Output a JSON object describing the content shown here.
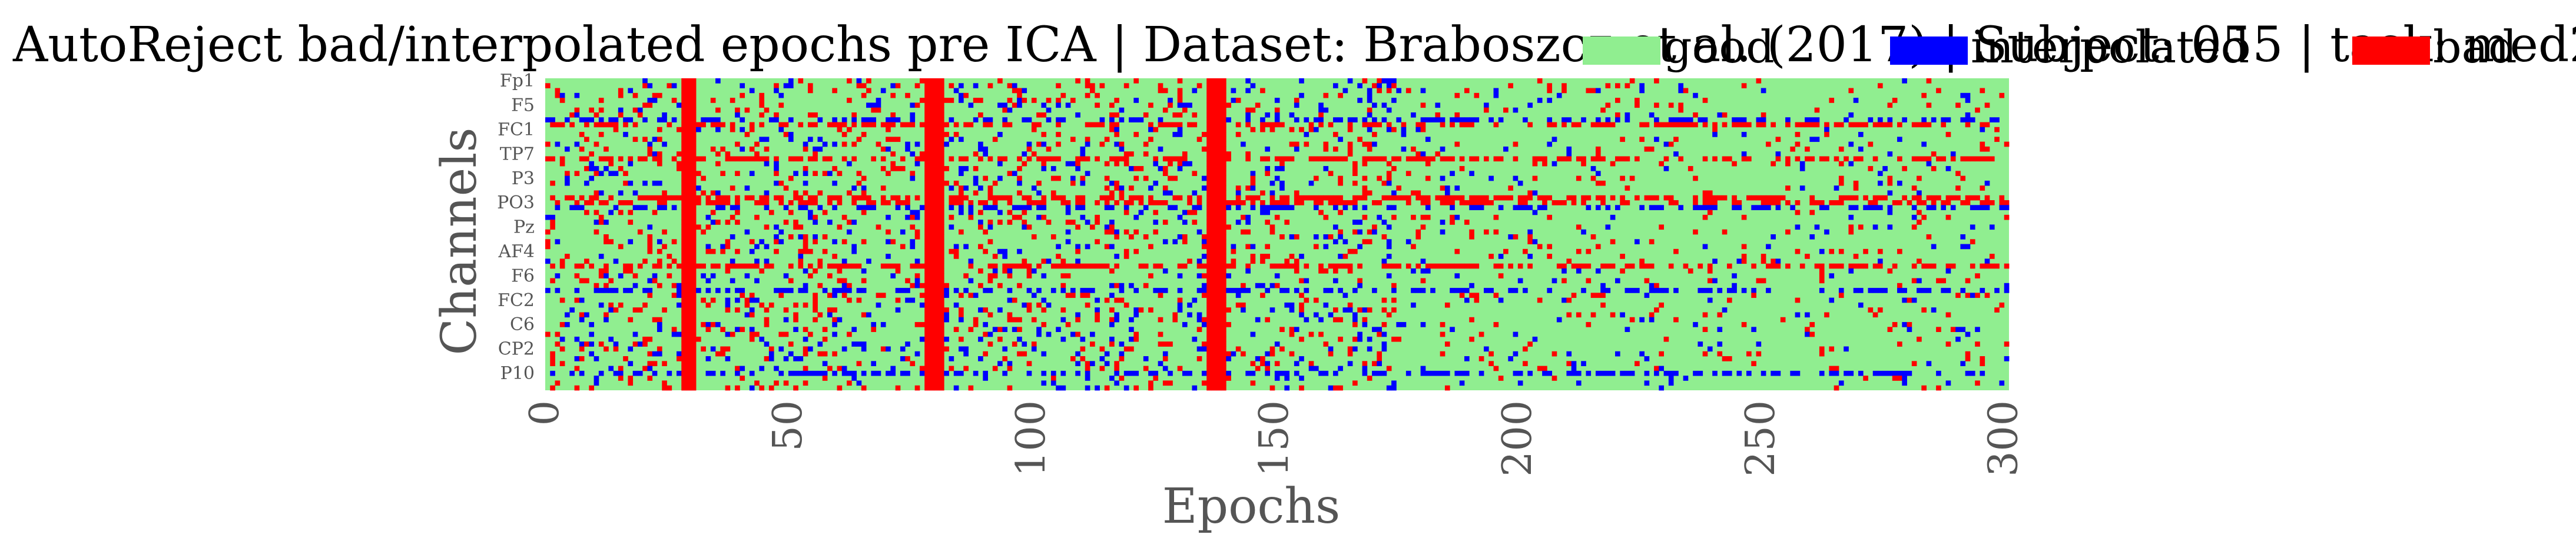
{
  "chart_data": {
    "type": "heatmap",
    "title": "AutoReject bad/interpolated epochs pre ICA | Dataset: Braboszcz et al. (2017) | Subject: 055 | task: med2",
    "xlabel": "Epochs",
    "ylabel": "Channels",
    "xlim": [
      0,
      301
    ],
    "x_ticks": [
      "0",
      "50",
      "100",
      "150",
      "200",
      "250",
      "300"
    ],
    "y_tick_labels": [
      "Fp1",
      "F5",
      "FC1",
      "TP7",
      "P3",
      "PO3",
      "Pz",
      "AF4",
      "F6",
      "FC2",
      "C6",
      "CP2",
      "P10"
    ],
    "channel_count": 64,
    "epoch_count": 301,
    "legend": [
      {
        "label": "good",
        "color": "#90ee90"
      },
      {
        "label": "interpolated",
        "color": "#0000ff"
      },
      {
        "label": "bad",
        "color": "#ff0000"
      }
    ],
    "legend_position": "top-right",
    "fully_bad_epochs": [
      28,
      29,
      30,
      78,
      79,
      80,
      81,
      136,
      137,
      138,
      139
    ],
    "frequently_bad_channels": [
      9,
      16,
      24,
      25,
      38
    ],
    "frequently_interpolated_channels": [
      8,
      26,
      43,
      60
    ],
    "note": ""
  }
}
